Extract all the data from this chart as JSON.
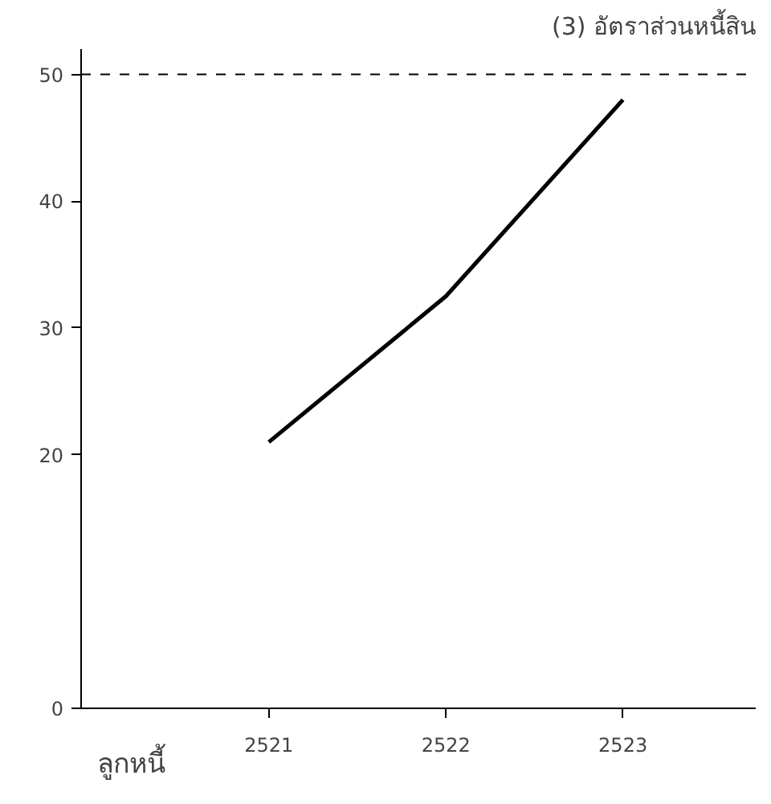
{
  "chart_data": {
    "type": "line",
    "title": "(3) อัตราส่วนหนี้สิน",
    "xlabel": "ลูกหนี้",
    "x": [
      2521,
      2522,
      2523
    ],
    "series": [
      {
        "color": "#000000",
        "values": [
          21,
          32.5,
          48
        ]
      }
    ],
    "xlim": [
      2519.94,
      2523.75
    ],
    "xticks": [
      {
        "value": 2521,
        "label": "2521"
      },
      {
        "value": 2522,
        "label": "2522"
      },
      {
        "value": 2523,
        "label": "2523"
      }
    ],
    "ylim": [
      0,
      52
    ],
    "yticks": [
      0,
      20,
      30,
      40,
      50
    ],
    "ref_lines": [
      {
        "axis": "y",
        "value": 50,
        "line_style": "dashed",
        "color": "#000000"
      }
    ],
    "grid": false,
    "line_style": "solid"
  }
}
